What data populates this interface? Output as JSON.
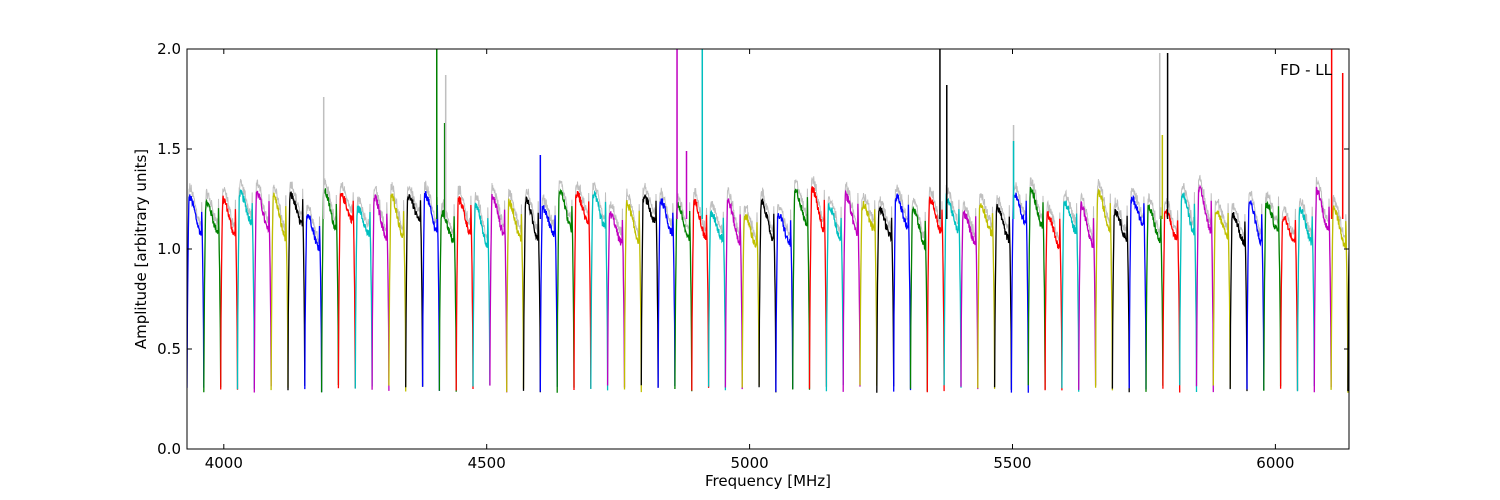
{
  "chart_data": {
    "type": "line",
    "title": "",
    "annotation": "FD - LL",
    "xlabel": "Frequency [MHz]",
    "ylabel": "Amplitude [arbitrary units]",
    "xlim": [
      3930,
      6140
    ],
    "ylim": [
      0.0,
      2.0
    ],
    "x_ticks": [
      4000,
      4500,
      5000,
      5500,
      6000
    ],
    "x_tick_labels": [
      "4000",
      "4500",
      "5000",
      "5500",
      "6000"
    ],
    "y_ticks": [
      0.0,
      0.5,
      1.0,
      1.5,
      2.0
    ],
    "y_tick_labels": [
      "0.0",
      "0.5",
      "1.0",
      "1.5",
      "2.0"
    ],
    "grid": false,
    "legend": "none",
    "background_trace_color": "#bfbfbf",
    "palette": [
      "#0000ff",
      "#008000",
      "#ff0000",
      "#00bfbf",
      "#bf00bf",
      "#bfbf00",
      "#000000"
    ],
    "channel_width_mhz": 32,
    "band_start_mhz": 3930,
    "band_end_mhz": 6140,
    "passband_level": 1.15,
    "edge_level": 0.3,
    "spikes": [
      {
        "x": 4190,
        "y": 1.76,
        "color": "#bfbfbf"
      },
      {
        "x": 4405,
        "y": 2.0,
        "color": "#008000"
      },
      {
        "x": 4420,
        "y": 1.63,
        "color": "#008000"
      },
      {
        "x": 4422,
        "y": 1.87,
        "color": "#bfbfbf"
      },
      {
        "x": 4602,
        "y": 1.47,
        "color": "#0000ff"
      },
      {
        "x": 4862,
        "y": 2.0,
        "color": "#bf00bf"
      },
      {
        "x": 4880,
        "y": 1.49,
        "color": "#bf00bf"
      },
      {
        "x": 4910,
        "y": 2.0,
        "color": "#00bfbf"
      },
      {
        "x": 5362,
        "y": 2.0,
        "color": "#000000"
      },
      {
        "x": 5375,
        "y": 1.82,
        "color": "#000000"
      },
      {
        "x": 5502,
        "y": 1.62,
        "color": "#bfbfbf"
      },
      {
        "x": 5502,
        "y": 1.54,
        "color": "#00bfbf"
      },
      {
        "x": 5780,
        "y": 1.98,
        "color": "#bfbfbf"
      },
      {
        "x": 5785,
        "y": 1.57,
        "color": "#bfbf00"
      },
      {
        "x": 5795,
        "y": 1.98,
        "color": "#000000"
      },
      {
        "x": 6107,
        "y": 2.0,
        "color": "#ff0000"
      },
      {
        "x": 6128,
        "y": 1.88,
        "color": "#ff0000"
      }
    ]
  }
}
